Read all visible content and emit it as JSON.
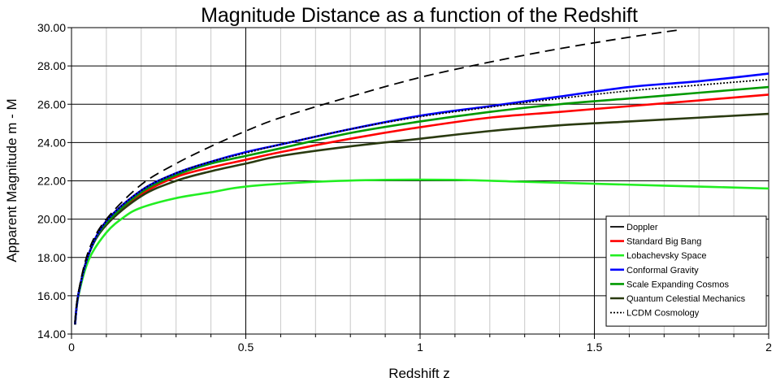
{
  "chart_data": {
    "type": "line",
    "title": "Magnitude Distance as a function of the Redshift",
    "xlabel": "Redshift  z",
    "ylabel": "Apparent Magnitude m - M",
    "xlim": [
      0,
      2
    ],
    "ylim": [
      14,
      30
    ],
    "x_ticks": [
      {
        "value": 0,
        "label": "0"
      },
      {
        "value": 0.5,
        "label": "0.5"
      },
      {
        "value": 1,
        "label": "1"
      },
      {
        "value": 1.5,
        "label": "1.5"
      },
      {
        "value": 2,
        "label": "2"
      }
    ],
    "y_ticks": [
      {
        "value": 14,
        "label": "14.00"
      },
      {
        "value": 16,
        "label": "16.00"
      },
      {
        "value": 18,
        "label": "18.00"
      },
      {
        "value": 20,
        "label": "20.00"
      },
      {
        "value": 22,
        "label": "22.00"
      },
      {
        "value": 24,
        "label": "24.00"
      },
      {
        "value": 26,
        "label": "26.00"
      },
      {
        "value": 28,
        "label": "28.00"
      },
      {
        "value": 30,
        "label": "30.00"
      }
    ],
    "grid": true,
    "legend_position": "bottom-right",
    "series": [
      {
        "name": "Doppler",
        "color": "#000000",
        "dash": "dashed",
        "x": [
          0.01,
          0.02,
          0.05,
          0.1,
          0.2,
          0.3,
          0.4,
          0.5,
          0.6,
          0.8,
          1.0,
          1.2,
          1.4,
          1.6,
          1.75
        ],
        "y": [
          14.6,
          16.2,
          18.4,
          20.0,
          21.8,
          22.9,
          23.8,
          24.6,
          25.3,
          26.4,
          27.4,
          28.2,
          28.9,
          29.5,
          29.9
        ]
      },
      {
        "name": "Standard Big Bang",
        "color": "#ff0000",
        "dash": "solid",
        "x": [
          0.01,
          0.02,
          0.05,
          0.1,
          0.2,
          0.3,
          0.4,
          0.5,
          0.6,
          0.8,
          1.0,
          1.2,
          1.4,
          1.6,
          1.8,
          2.0
        ],
        "y": [
          14.5,
          16.1,
          18.2,
          19.8,
          21.3,
          22.2,
          22.7,
          23.1,
          23.5,
          24.2,
          24.8,
          25.3,
          25.6,
          25.9,
          26.2,
          26.5
        ]
      },
      {
        "name": "Lobachevsky Space",
        "color": "#22ee22",
        "dash": "solid",
        "x": [
          0.01,
          0.02,
          0.05,
          0.1,
          0.15,
          0.2,
          0.3,
          0.4,
          0.5,
          0.7,
          0.9,
          1.1,
          1.3,
          1.5,
          1.7,
          2.0
        ],
        "y": [
          14.5,
          16.0,
          17.9,
          19.3,
          20.1,
          20.6,
          21.1,
          21.4,
          21.7,
          21.95,
          22.05,
          22.05,
          21.95,
          21.85,
          21.75,
          21.6
        ]
      },
      {
        "name": "Conformal Gravity",
        "color": "#0000ff",
        "dash": "solid",
        "x": [
          0.01,
          0.02,
          0.05,
          0.1,
          0.2,
          0.3,
          0.4,
          0.5,
          0.6,
          0.8,
          1.0,
          1.2,
          1.4,
          1.6,
          1.8,
          2.0
        ],
        "y": [
          14.5,
          16.1,
          18.2,
          19.9,
          21.5,
          22.4,
          23.0,
          23.5,
          23.9,
          24.7,
          25.4,
          25.9,
          26.4,
          26.9,
          27.2,
          27.6
        ]
      },
      {
        "name": "Scale Expanding Cosmos",
        "color": "#009900",
        "dash": "solid",
        "x": [
          0.01,
          0.02,
          0.05,
          0.1,
          0.2,
          0.3,
          0.4,
          0.5,
          0.6,
          0.8,
          1.0,
          1.2,
          1.4,
          1.6,
          1.8,
          2.0
        ],
        "y": [
          14.5,
          16.1,
          18.2,
          19.8,
          21.4,
          22.3,
          22.9,
          23.3,
          23.7,
          24.5,
          25.1,
          25.6,
          26.0,
          26.3,
          26.6,
          26.9
        ]
      },
      {
        "name": "Quantum Celestial Mechanics",
        "color": "#2a3a10",
        "dash": "solid",
        "x": [
          0.01,
          0.02,
          0.05,
          0.1,
          0.2,
          0.3,
          0.4,
          0.5,
          0.6,
          0.8,
          1.0,
          1.2,
          1.4,
          1.6,
          1.8,
          2.0
        ],
        "y": [
          14.5,
          16.1,
          18.2,
          19.7,
          21.2,
          22.0,
          22.5,
          22.9,
          23.3,
          23.8,
          24.2,
          24.6,
          24.9,
          25.1,
          25.3,
          25.5
        ]
      },
      {
        "name": "LCDM Cosmology",
        "color": "#000000",
        "dash": "dotted",
        "x": [
          0.01,
          0.02,
          0.05,
          0.1,
          0.2,
          0.3,
          0.4,
          0.5,
          0.6,
          0.8,
          1.0,
          1.2,
          1.4,
          1.6,
          1.8,
          2.0
        ],
        "y": [
          14.5,
          16.1,
          18.2,
          19.9,
          21.5,
          22.4,
          23.0,
          23.45,
          23.9,
          24.7,
          25.35,
          25.85,
          26.3,
          26.7,
          27.0,
          27.3
        ]
      }
    ]
  }
}
